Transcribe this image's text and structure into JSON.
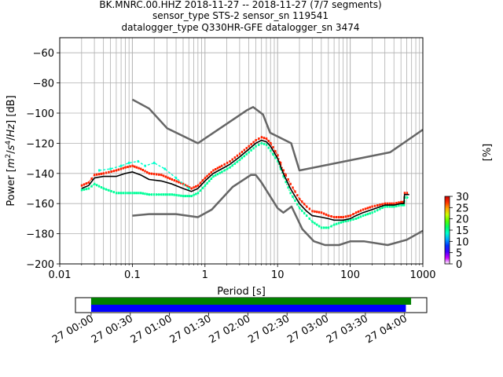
{
  "title_lines": [
    "BK.MNRC.00.HHZ   2018-11-27 -- 2018-11-27  (7/7 segments)",
    "sensor_type STS-2 sensor_sn 119541",
    "datalogger_type Q330HR-GFE datalogger_sn 3474"
  ],
  "chart_data": [
    {
      "type": "line",
      "xlabel": "Period [s]",
      "ylabel": "Power [m²/s⁴/Hz] [dB]",
      "xscale": "log",
      "xlim": [
        0.01,
        1000
      ],
      "ylim": [
        -200,
        -50
      ],
      "x_ticks": [
        0.01,
        0.1,
        1,
        10,
        100,
        1000
      ],
      "x_tick_labels": [
        "0.01",
        "0.1",
        "1",
        "10",
        "100",
        "1000"
      ],
      "y_ticks": [
        -200,
        -180,
        -160,
        -140,
        -120,
        -100,
        -80,
        -60
      ],
      "y_tick_labels": [
        "−200",
        "−180",
        "−160",
        "−140",
        "−120",
        "−100",
        "−80",
        "−60"
      ],
      "grid": true,
      "series": [
        {
          "role": "noise-model-high",
          "color": "#666666",
          "x": [
            0.1,
            0.17,
            0.3,
            0.8,
            3.8,
            4.6,
            6.3,
            7.9,
            15.4,
            20,
            354.8,
            1000
          ],
          "y": [
            -91,
            -97,
            -110,
            -120,
            -98,
            -96,
            -101,
            -113,
            -120,
            -138,
            -126,
            -111
          ]
        },
        {
          "role": "noise-model-low",
          "color": "#666666",
          "x": [
            0.1,
            0.17,
            0.4,
            0.8,
            1.24,
            2.4,
            4.3,
            5,
            6,
            10,
            12,
            15.6,
            21.9,
            31.6,
            45,
            70,
            101,
            154,
            328,
            600,
            1000
          ],
          "y": [
            -168,
            -167,
            -167,
            -169,
            -164,
            -149,
            -141,
            -141,
            -146,
            -163,
            -166,
            -162,
            -177,
            -185,
            -187.5,
            -187.5,
            -185,
            -185,
            -187.5,
            -184,
            -178
          ]
        },
        {
          "role": "mode",
          "color": "#000000",
          "x": [
            0.02,
            0.025,
            0.03,
            0.04,
            0.06,
            0.08,
            0.1,
            0.13,
            0.17,
            0.25,
            0.35,
            0.5,
            0.65,
            0.8,
            1.0,
            1.3,
            1.7,
            2.2,
            3,
            4,
            5,
            6,
            7,
            8,
            10,
            12,
            15,
            20,
            25,
            30,
            40,
            50,
            60,
            80,
            100,
            120,
            150,
            200,
            300,
            400,
            500,
            550,
            560,
            650
          ],
          "y": [
            -150,
            -148,
            -143,
            -142,
            -142,
            -140,
            -139,
            -141,
            -144,
            -145,
            -147,
            -150,
            -152,
            -150,
            -145,
            -140,
            -137,
            -134,
            -129,
            -124,
            -120,
            -118,
            -119,
            -122,
            -130,
            -140,
            -150,
            -160,
            -165,
            -168,
            -169,
            -170,
            -171,
            -171,
            -170,
            -168,
            -166,
            -164,
            -161,
            -161,
            -160,
            -160,
            -154,
            -154
          ]
        },
        {
          "role": "psd-upper",
          "color": "#ff2200",
          "x": [
            0.02,
            0.025,
            0.03,
            0.04,
            0.06,
            0.08,
            0.1,
            0.13,
            0.17,
            0.25,
            0.35,
            0.5,
            0.65,
            0.8,
            1.0,
            1.3,
            1.7,
            2.2,
            3,
            4,
            5,
            6,
            7,
            8,
            10,
            12,
            15,
            20,
            25,
            30,
            40,
            50,
            60,
            80,
            100,
            120,
            150,
            200,
            300,
            400,
            500,
            550,
            560,
            650
          ],
          "y": [
            -148,
            -146,
            -141,
            -140,
            -138,
            -136,
            -135,
            -137,
            -140,
            -141,
            -144,
            -147,
            -150,
            -148,
            -143,
            -138,
            -135,
            -132,
            -127,
            -122,
            -118,
            -116,
            -117,
            -120,
            -128,
            -138,
            -147,
            -157,
            -162,
            -165,
            -166,
            -168,
            -169,
            -169,
            -168,
            -166,
            -164,
            -162,
            -160,
            -160,
            -159,
            -159,
            -153,
            -153
          ]
        },
        {
          "role": "psd-lower",
          "color": "#00ff99",
          "x": [
            0.02,
            0.025,
            0.03,
            0.04,
            0.06,
            0.08,
            0.1,
            0.13,
            0.17,
            0.25,
            0.35,
            0.5,
            0.65,
            0.8,
            1.0,
            1.3,
            1.7,
            2.2,
            3,
            4,
            5,
            6,
            7,
            8,
            10,
            12,
            15,
            20,
            25,
            30,
            40,
            50,
            60,
            80,
            100,
            120,
            150,
            200,
            300,
            400,
            500,
            550,
            560,
            650
          ],
          "y": [
            -151,
            -150,
            -147,
            -150,
            -153,
            -153,
            -153,
            -153,
            -154,
            -154,
            -154,
            -155,
            -155,
            -153,
            -148,
            -142,
            -139,
            -136,
            -131,
            -126,
            -122,
            -120,
            -121,
            -125,
            -132,
            -142,
            -153,
            -163,
            -168,
            -172,
            -176,
            -176,
            -174,
            -172,
            -171,
            -170,
            -168,
            -166,
            -162,
            -162,
            -161,
            -161,
            -156,
            -156
          ]
        },
        {
          "role": "psd-scatter",
          "color": "#00ffcc",
          "x": [
            0.035,
            0.05,
            0.07,
            0.09,
            0.12,
            0.15,
            0.2,
            0.28,
            0.4,
            0.6
          ],
          "y": [
            -138,
            -137,
            -135,
            -133,
            -132,
            -135,
            -133,
            -137,
            -143,
            -150
          ]
        }
      ],
      "colorbar": {
        "label": "[%]",
        "min": 0,
        "max": 30,
        "ticks": [
          0,
          5,
          10,
          15,
          20,
          25,
          30
        ],
        "tick_labels": [
          "0",
          "5",
          "10",
          "15",
          "20",
          "25",
          "30"
        ],
        "colors": [
          "#ffffff",
          "#cc00ff",
          "#4000ff",
          "#0033ff",
          "#00aaff",
          "#00ffcc",
          "#00ff66",
          "#55ff00",
          "#ccff00",
          "#ffaa00",
          "#ff3300",
          "#cc0000"
        ]
      }
    },
    {
      "type": "timeline",
      "x_tick_labels": [
        "27 00:00",
        "27 00:30",
        "27 01:00",
        "27 01:30",
        "27 02:00",
        "27 02:30",
        "27 03:00",
        "27 03:30",
        "27 04:00"
      ],
      "x_ticks_minutes": [
        0,
        30,
        60,
        90,
        120,
        150,
        180,
        210,
        240
      ],
      "xlim_minutes": [
        -12,
        257
      ],
      "bars": [
        {
          "color": "#008000",
          "start_minutes": 0,
          "end_minutes": 245
        },
        {
          "color": "#0000ff",
          "start_minutes": 0,
          "end_minutes": 241
        }
      ]
    }
  ]
}
